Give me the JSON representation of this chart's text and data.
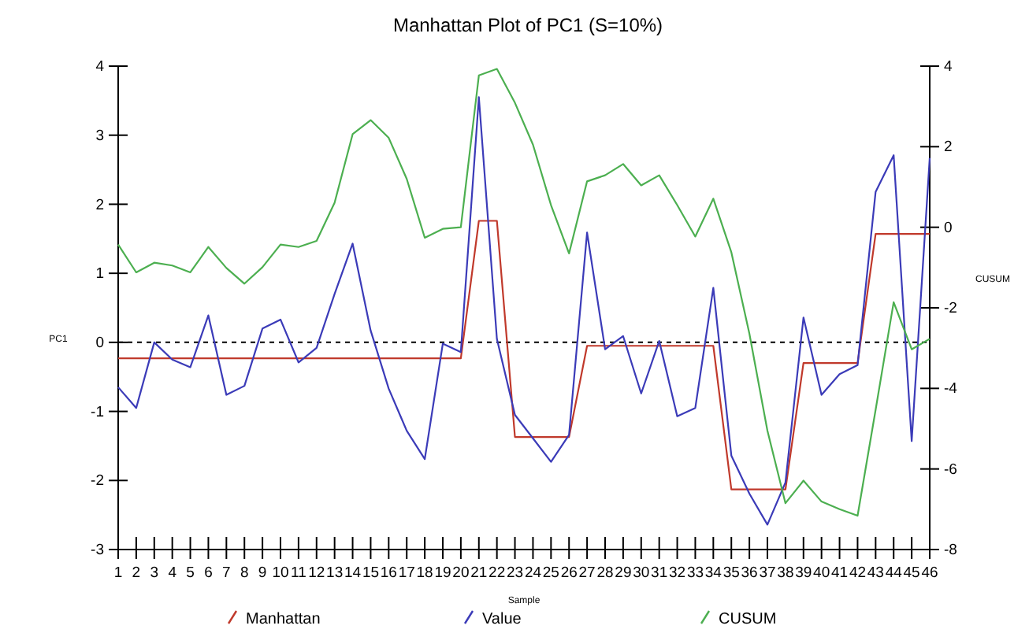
{
  "chart_data": {
    "type": "line",
    "title": "Manhattan Plot of PC1 (S=10%)",
    "xlabel": "Sample",
    "ylabel": "PC1",
    "y2label": "CUSUM",
    "x": [
      1,
      2,
      3,
      4,
      5,
      6,
      7,
      8,
      9,
      10,
      11,
      12,
      13,
      14,
      15,
      16,
      17,
      18,
      19,
      20,
      21,
      22,
      23,
      24,
      25,
      26,
      27,
      28,
      29,
      30,
      31,
      32,
      33,
      34,
      35,
      36,
      37,
      38,
      39,
      40,
      41,
      42,
      43,
      44,
      45,
      46
    ],
    "xlim": [
      1,
      46
    ],
    "xticks": [
      1,
      2,
      3,
      4,
      5,
      6,
      7,
      8,
      9,
      10,
      11,
      12,
      13,
      14,
      15,
      16,
      17,
      18,
      19,
      20,
      21,
      22,
      23,
      24,
      25,
      26,
      27,
      28,
      29,
      30,
      31,
      32,
      33,
      34,
      35,
      36,
      37,
      38,
      39,
      40,
      41,
      42,
      43,
      44,
      45,
      46
    ],
    "ylim": [
      -3,
      4
    ],
    "yticks": [
      -3,
      -2,
      -1,
      0,
      1,
      2,
      3,
      4
    ],
    "y2lim": [
      -8,
      4
    ],
    "y2ticks": [
      -8,
      -6,
      -4,
      -2,
      0,
      2,
      4
    ],
    "series": [
      {
        "name": "Manhattan",
        "color": "#c0392b",
        "values": [
          -0.23,
          -0.23,
          -0.23,
          -0.23,
          -0.23,
          -0.23,
          -0.23,
          -0.23,
          -0.23,
          -0.23,
          -0.23,
          -0.23,
          -0.23,
          -0.23,
          -0.23,
          -0.23,
          -0.23,
          -0.23,
          -0.23,
          -0.23,
          1.76,
          1.76,
          -1.37,
          -1.37,
          -1.37,
          -1.37,
          -0.05,
          -0.05,
          -0.05,
          -0.05,
          -0.05,
          -0.05,
          -0.05,
          -0.05,
          -2.13,
          -2.13,
          -2.13,
          -2.13,
          -0.3,
          -0.3,
          -0.3,
          -0.3,
          1.57,
          1.57,
          1.57,
          1.57
        ]
      },
      {
        "name": "Value",
        "color": "#3b3bb8",
        "values": [
          -0.65,
          -0.95,
          0,
          -0.25,
          -0.36,
          0.39,
          -0.76,
          -0.63,
          0.2,
          0.33,
          -0.29,
          -0.08,
          0.7,
          1.43,
          0.17,
          -0.67,
          -1.28,
          -1.69,
          -0.02,
          -0.14,
          3.55,
          0.05,
          -1.05,
          -1.39,
          -1.73,
          -1.34,
          1.59,
          -0.1,
          0.09,
          -0.74,
          0.02,
          -1.07,
          -0.95,
          0.79,
          -1.64,
          -2.19,
          -2.64,
          -2.03,
          0.36,
          -0.76,
          -0.46,
          -0.33,
          2.18,
          2.71,
          -1.43,
          2.67
        ]
      },
      {
        "name": "CUSUM",
        "color": "#4caf50",
        "axis": "y2",
        "values": [
          -0.43,
          -1.12,
          -0.88,
          -0.95,
          -1.12,
          -0.49,
          -1.01,
          -1.4,
          -0.99,
          -0.43,
          -0.49,
          -0.34,
          0.61,
          2.31,
          2.66,
          2.22,
          1.2,
          -0.26,
          -0.04,
          0,
          3.77,
          3.93,
          3.09,
          2.05,
          0.55,
          -0.65,
          1.14,
          1.29,
          1.57,
          1.04,
          1.29,
          0.55,
          -0.23,
          0.71,
          -0.62,
          -2.64,
          -5.05,
          -6.85,
          -6.29,
          -6.81,
          -7.0,
          -7.16,
          -4.53,
          -1.86,
          -3.03,
          -2.77
        ]
      }
    ],
    "ref_lines": [
      {
        "axis": "y",
        "value": 0,
        "color": "#000000",
        "line_style": "dashed"
      }
    ],
    "legend": "bottom",
    "grid": false,
    "marker": "none",
    "line_style": "solid"
  }
}
